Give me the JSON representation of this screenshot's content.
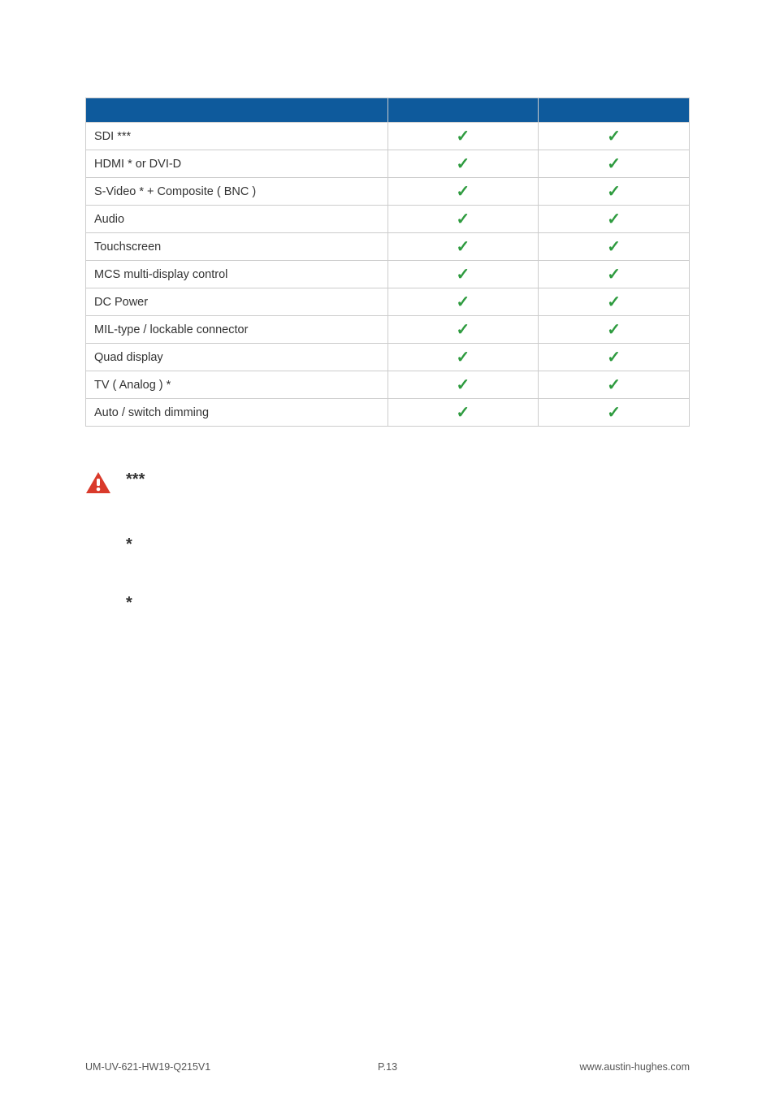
{
  "table": {
    "rows": [
      {
        "label": "SDI ***",
        "col1": true,
        "col2": true
      },
      {
        "label": "HDMI *  or  DVI-D",
        "col1": true,
        "col2": true
      },
      {
        "label": "S-Video *  + Composite ( BNC )",
        "col1": true,
        "col2": true
      },
      {
        "label": "Audio",
        "col1": true,
        "col2": true
      },
      {
        "label": "Touchscreen",
        "col1": true,
        "col2": true
      },
      {
        "label": "MCS  multi-display control",
        "col1": true,
        "col2": true
      },
      {
        "label": "DC Power",
        "col1": true,
        "col2": true
      },
      {
        "label": "MIL-type / lockable connector",
        "col1": true,
        "col2": true
      },
      {
        "label": "Quad display",
        "col1": true,
        "col2": true
      },
      {
        "label": "TV ( Analog )  *",
        "col1": true,
        "col2": true
      },
      {
        "label": "Auto / switch dimming",
        "col1": true,
        "col2": true
      }
    ]
  },
  "notes": {
    "marker1": "***",
    "marker2": "*",
    "marker3": "*"
  },
  "footer": {
    "left": "UM-UV-621-HW19-Q215V1",
    "center": "P.13",
    "right": "www.austin-hughes.com"
  },
  "colors": {
    "header_bg": "#0e5a9c",
    "border": "#cccccc",
    "check": "#2e9b3f",
    "text": "#333333",
    "footer_text": "#555555",
    "warn_fill": "#d93a2b"
  }
}
